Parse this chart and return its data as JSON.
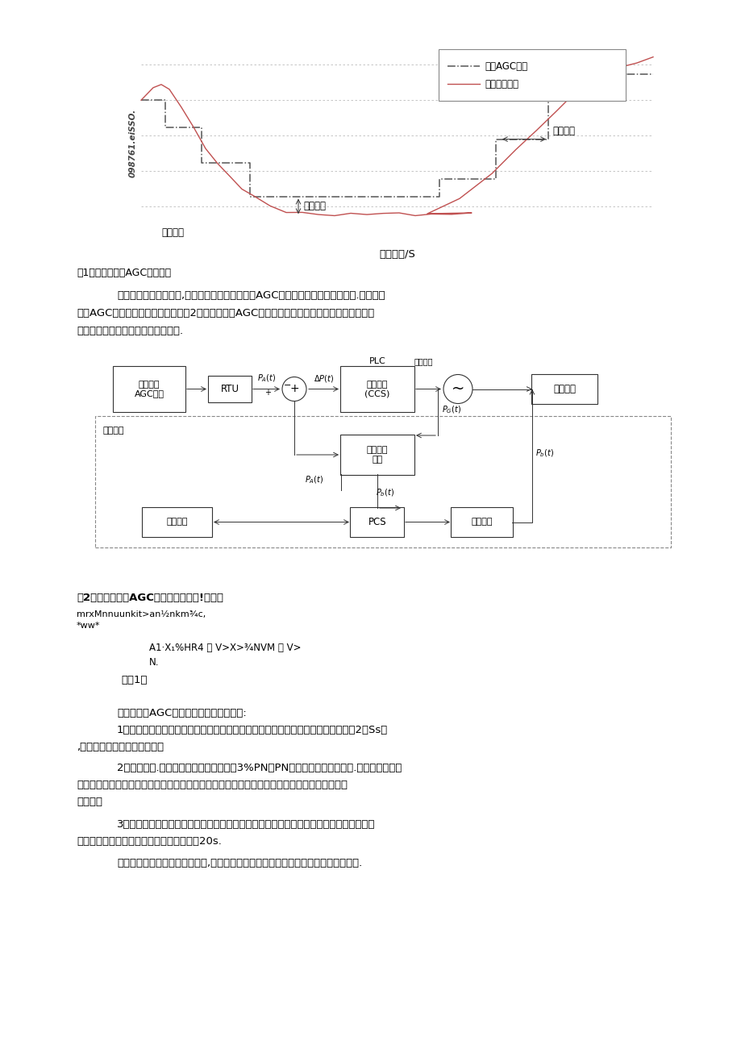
{
  "page_bg": "#ffffff",
  "fig1_title": "图1火电机组响版AGC指令过程",
  "fig2_title": "图2储能辅助机组AGC词频的控制原叫!示意图",
  "legend1": "调度AGC指令",
  "legend2": "机组实际出力",
  "annotation_bias": "调节偏差",
  "annotation_delay": "调节延迟",
  "annotation_reverse": "调节反向",
  "xlabel": "调方时间/S",
  "watermark": "098761.eiSSO.",
  "para1_line1": "随着对调媛技术的探索,一种火储联合系统在用于AGC词叙时展现出了优弁的效果.储能辅助",
  "para1_line2": "机组AGC调频的控制原理示意图如图2所示，即可将AGC调频指令的功率差额交给储能部分响应，",
  "para1_line3": "这样可以大大提高火电厂的调节性能.",
  "formula_label1": "mrxMnnuunkit>an½nkm¾c,",
  "formula_label2": "*ww*",
  "formula_content1": "A1·X₁%HR4 ｜ V>X>¾NVM ｜ V>",
  "formula_content2": "N.",
  "formula_tag": "式（1）",
  "para2_title": "储能对机组AGC词频性能的改善衣现如下:",
  "para2_1a": "1）调节速哎，储能系统充放电时间为秒级跳至更短，计及控制系统的廷时（实测为2～Ss）",
  "para2_1b": ",也可大幅提高机组调节速度，",
  "para2_2a": "2）调行精度.储能系统的调节偏差一般为3%PN（PN为储能系统额定功率）.远小于火电机组",
  "para2_2b": "并息由于健能系统调节速度快，还可以对火电机组的稳态诩节误差进行修正，进一步提高机组调",
  "para2_2c": "节制度，",
  "para2_3a": "3）调节时间。相比火电机组，储能系统响应速度更快，即使考虑枭样、控制及通信等环节",
  "para2_3b": "的号时，也很容易使机组总体响应时间小于20s.",
  "para2_4": "此外，当住比适当的谛能容尿后,还可以降低机统由于深度或频繁调节带来的疲劳报出."
}
